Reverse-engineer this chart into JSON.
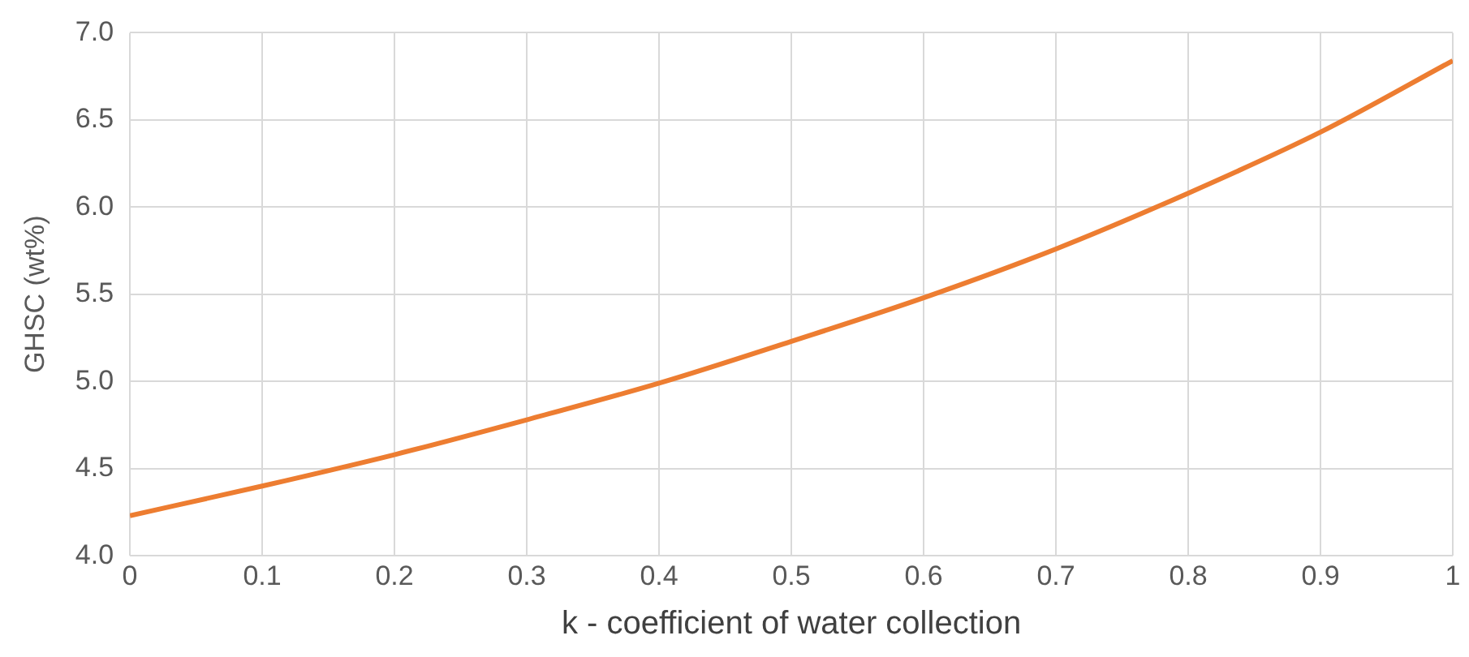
{
  "chart_data": {
    "type": "line",
    "xlabel": "k - coefficient of water collection",
    "ylabel": "GHSC (wt%)",
    "x": [
      0,
      0.1,
      0.2,
      0.3,
      0.4,
      0.5,
      0.6,
      0.7,
      0.8,
      0.9,
      1
    ],
    "series": [
      {
        "color": "#ed7d31",
        "values": [
          4.23,
          4.4,
          4.58,
          4.78,
          4.99,
          5.23,
          5.48,
          5.76,
          6.08,
          6.43,
          6.84
        ]
      }
    ],
    "xlim": [
      0,
      1
    ],
    "xticks": [
      0,
      0.1,
      0.2,
      0.3,
      0.4,
      0.5,
      0.6,
      0.7,
      0.8,
      0.9,
      1
    ],
    "ylim": [
      4,
      7
    ],
    "yticks": [
      {
        "value": 4,
        "label": "4.0"
      },
      {
        "value": 4.5,
        "label": "4.5"
      },
      {
        "value": 5,
        "label": "5.0"
      },
      {
        "value": 5.5,
        "label": "5.5"
      },
      {
        "value": 6,
        "label": "6.0"
      },
      {
        "value": 6.5,
        "label": "6.5"
      },
      {
        "value": 7,
        "label": "7.0"
      }
    ],
    "grid": true,
    "legend": false,
    "marker": "none",
    "line_style": "solid"
  }
}
